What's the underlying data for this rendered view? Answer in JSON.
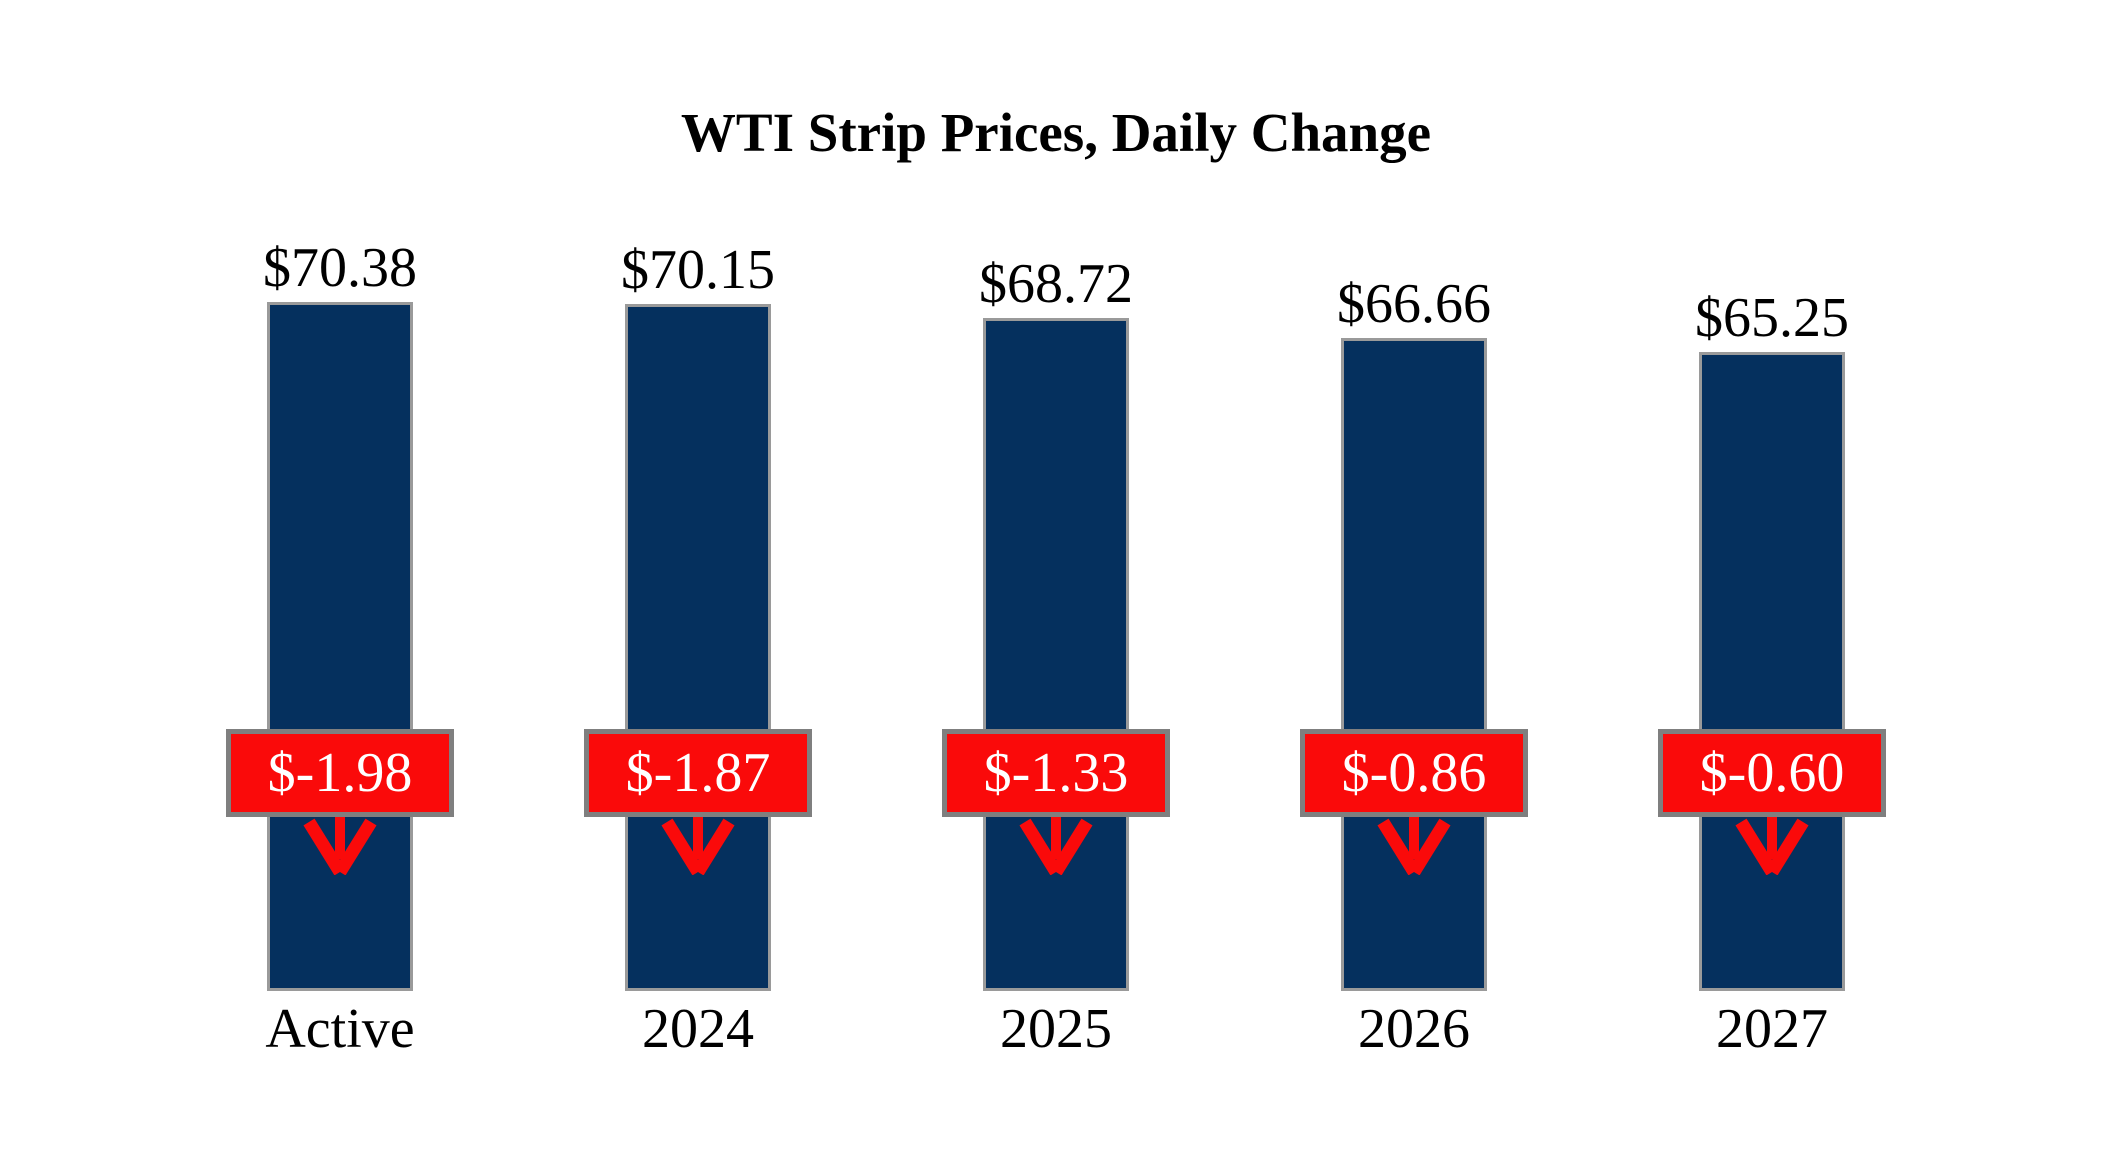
{
  "title": "WTI Strip Prices, Daily Change",
  "colors": {
    "background": "#ffffff",
    "bar_fill": "#05305e",
    "bar_border": "#9a9a9a",
    "badge_fill": "#fa0a0a",
    "badge_border": "#7f7f7f",
    "badge_text": "#ffffff",
    "arrow": "#fa0a0a",
    "label_text": "#000000"
  },
  "chart_data": {
    "type": "bar",
    "title": "WTI Strip Prices, Daily Change",
    "categories": [
      "Active",
      "2024",
      "2025",
      "2026",
      "2027"
    ],
    "series": [
      {
        "name": "Strip Price",
        "values": [
          70.38,
          70.15,
          68.72,
          66.66,
          65.25
        ]
      },
      {
        "name": "Daily Change",
        "values": [
          -1.98,
          -1.87,
          -1.33,
          -0.86,
          -0.6
        ]
      }
    ],
    "price_labels": [
      "$70.38",
      "$70.15",
      "$68.72",
      "$66.66",
      "$65.25"
    ],
    "change_labels": [
      "$-1.98",
      "$-1.87",
      "$-1.33",
      "$-0.86",
      "$-0.60"
    ],
    "ylim": [
      0,
      70.38
    ],
    "grid": false,
    "legend": "none",
    "change_direction": "down"
  }
}
